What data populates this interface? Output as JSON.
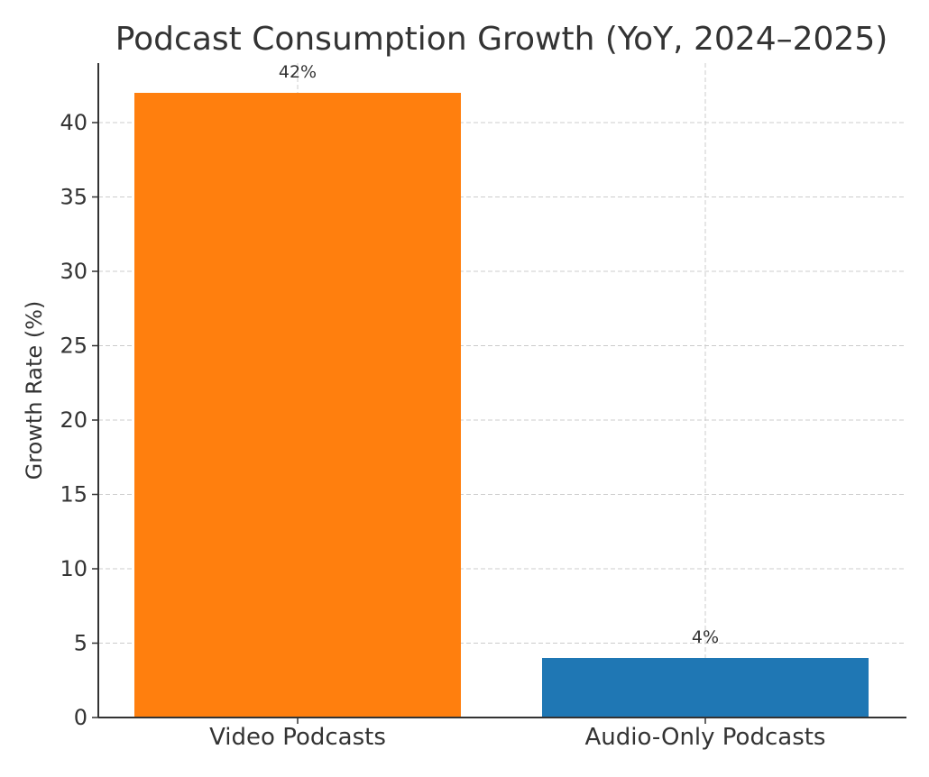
{
  "chart_data": {
    "type": "bar",
    "title": "Podcast Consumption Growth (YoY, 2024–2025)",
    "xlabel": "",
    "ylabel": "Growth Rate (%)",
    "categories": [
      "Video Podcasts",
      "Audio-Only Podcasts"
    ],
    "values": [
      42,
      4
    ],
    "value_labels": [
      "42%",
      "4%"
    ],
    "colors": [
      "#ff7f0e",
      "#1f77b4"
    ],
    "ylim": [
      0,
      44
    ],
    "yticks": [
      0,
      5,
      10,
      15,
      20,
      25,
      30,
      35,
      40
    ],
    "grid": true,
    "legend": "none"
  }
}
